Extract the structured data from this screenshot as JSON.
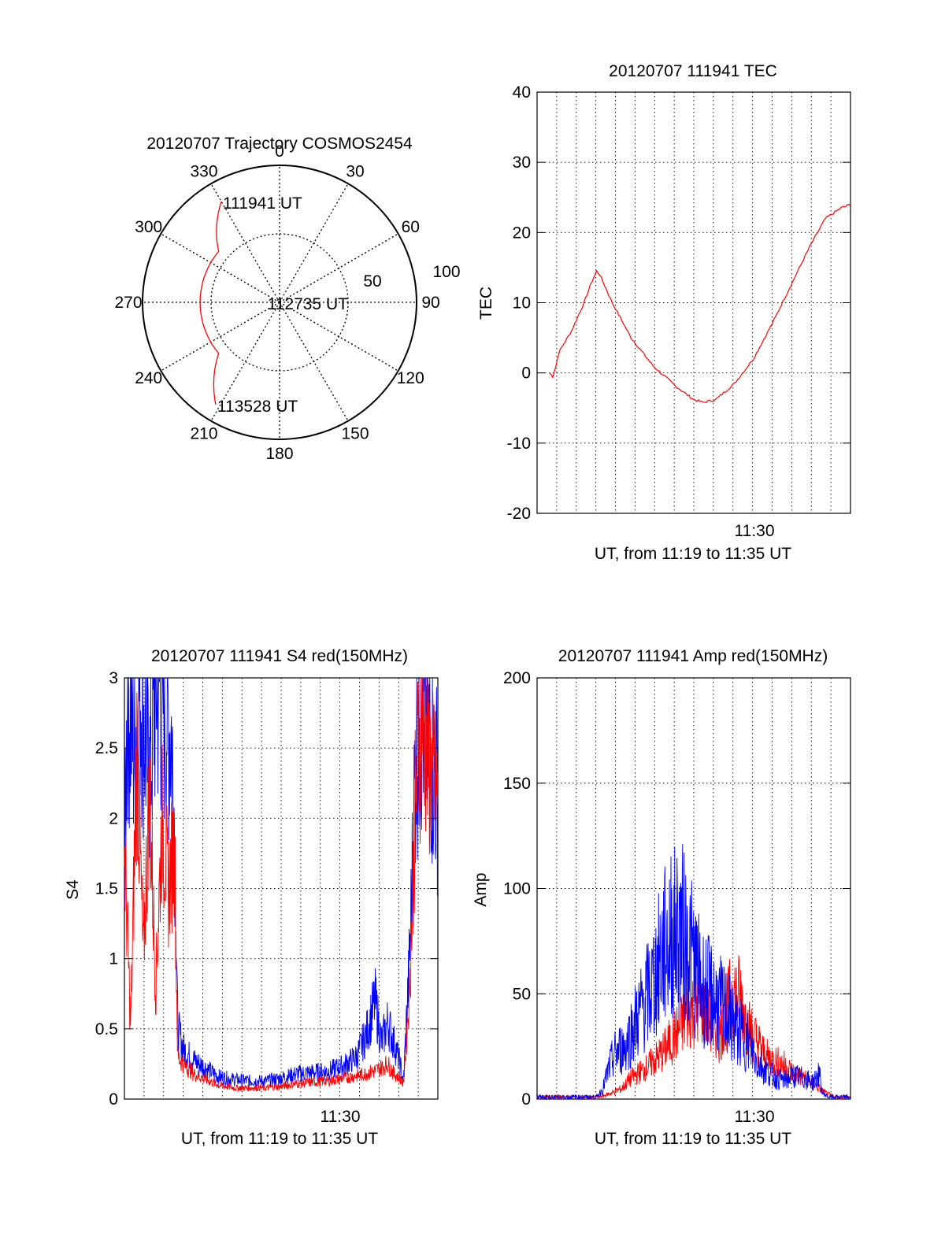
{
  "colors": {
    "red": "#ff0000",
    "blue": "#0000ff",
    "axis": "#000000",
    "grid": "#000000"
  },
  "chart_data": [
    {
      "id": "polar",
      "type": "polar",
      "title": "20120707 Trajectory COSMOS2454",
      "azimuth_labels": [
        "0",
        "30",
        "60",
        "90",
        "120",
        "150",
        "180",
        "210",
        "240",
        "270",
        "300",
        "330"
      ],
      "radial_labels": [
        "50",
        "100"
      ],
      "rlim": [
        0,
        100
      ],
      "grid": true,
      "series": [
        {
          "color": "red",
          "points": [
            [
              330,
              85
            ],
            [
              310,
              58
            ],
            [
              270,
              58
            ],
            [
              230,
              58
            ],
            [
              212,
              88
            ]
          ]
        }
      ],
      "annotations": [
        {
          "text": "111941 UT",
          "az": 330,
          "r": 85
        },
        {
          "text": "112735 UT",
          "az": 270,
          "r": 10
        },
        {
          "text": "113528 UT",
          "az": 212,
          "r": 88
        }
      ]
    },
    {
      "id": "tec",
      "type": "line",
      "title": "20120707 111941 TEC",
      "ylabel": "TEC",
      "xlabel": "UT, from 11:19 to 11:35 UT",
      "xtick_label": "11:30",
      "xlim": [
        0,
        100
      ],
      "ylim": [
        -20,
        40
      ],
      "yticks": [
        "40",
        "30",
        "20",
        "10",
        "0",
        "-10",
        "-20"
      ],
      "grid": true,
      "series": [
        {
          "color": "red",
          "points": [
            [
              4,
              0
            ],
            [
              5,
              -0.5
            ],
            [
              6,
              1
            ],
            [
              7,
              3
            ],
            [
              9,
              4.5
            ],
            [
              11,
              6
            ],
            [
              13,
              8
            ],
            [
              15,
              10
            ],
            [
              17,
              12.5
            ],
            [
              19,
              14.5
            ],
            [
              20,
              14
            ],
            [
              24,
              10
            ],
            [
              30,
              5
            ],
            [
              37,
              1
            ],
            [
              44,
              -1.8
            ],
            [
              50,
              -3.8
            ],
            [
              53,
              -4.2
            ],
            [
              57,
              -3.8
            ],
            [
              63,
              -1.5
            ],
            [
              69,
              2
            ],
            [
              75,
              7
            ],
            [
              81,
              12.5
            ],
            [
              87,
              18
            ],
            [
              92,
              22
            ],
            [
              97,
              23.5
            ],
            [
              100,
              24
            ]
          ]
        }
      ]
    },
    {
      "id": "s4",
      "type": "line",
      "title": "20120707 111941 S4 red(150MHz)",
      "ylabel": "S4",
      "xlabel": "UT, from 11:19 to 11:35 UT",
      "xtick_label": "11:30",
      "xlim": [
        0,
        100
      ],
      "ylim": [
        0,
        3
      ],
      "yticks": [
        "3",
        "2.5",
        "2",
        "1.5",
        "1",
        "0.5",
        "0"
      ],
      "grid": true,
      "series": [
        {
          "color": "blue",
          "noise": 0.35,
          "points": [
            [
              0,
              1.5
            ],
            [
              1,
              3
            ],
            [
              3,
              2.5
            ],
            [
              5,
              3
            ],
            [
              8,
              2.3
            ],
            [
              10,
              3
            ],
            [
              13,
              2.8
            ],
            [
              15,
              2.6
            ],
            [
              16,
              2
            ],
            [
              17,
              0.5
            ],
            [
              19,
              0.35
            ],
            [
              22,
              0.28
            ],
            [
              26,
              0.22
            ],
            [
              30,
              0.16
            ],
            [
              35,
              0.14
            ],
            [
              40,
              0.13
            ],
            [
              45,
              0.13
            ],
            [
              50,
              0.15
            ],
            [
              55,
              0.18
            ],
            [
              60,
              0.19
            ],
            [
              65,
              0.2
            ],
            [
              70,
              0.24
            ],
            [
              74,
              0.3
            ],
            [
              77,
              0.45
            ],
            [
              80,
              0.7
            ],
            [
              82,
              0.4
            ],
            [
              84,
              0.55
            ],
            [
              86,
              0.4
            ],
            [
              88,
              0.25
            ],
            [
              89,
              0.12
            ],
            [
              91,
              1
            ],
            [
              93,
              2.5
            ],
            [
              95,
              2.8
            ],
            [
              97,
              2.6
            ],
            [
              100,
              2.2
            ]
          ]
        },
        {
          "color": "red",
          "noise": 0.3,
          "points": [
            [
              0,
              1.8
            ],
            [
              2,
              0.5
            ],
            [
              4,
              2.5
            ],
            [
              6,
              1
            ],
            [
              8,
              2.2
            ],
            [
              10,
              0.8
            ],
            [
              12,
              2
            ],
            [
              14,
              1.5
            ],
            [
              16,
              1.8
            ],
            [
              17,
              0.3
            ],
            [
              19,
              0.25
            ],
            [
              22,
              0.18
            ],
            [
              26,
              0.14
            ],
            [
              30,
              0.1
            ],
            [
              35,
              0.08
            ],
            [
              40,
              0.08
            ],
            [
              45,
              0.08
            ],
            [
              50,
              0.09
            ],
            [
              55,
              0.11
            ],
            [
              60,
              0.12
            ],
            [
              65,
              0.13
            ],
            [
              70,
              0.15
            ],
            [
              75,
              0.17
            ],
            [
              80,
              0.2
            ],
            [
              84,
              0.25
            ],
            [
              86,
              0.18
            ],
            [
              88,
              0.15
            ],
            [
              89,
              0.1
            ],
            [
              91,
              0.8
            ],
            [
              93,
              2.2
            ],
            [
              95,
              2.8
            ],
            [
              97,
              2.4
            ],
            [
              100,
              2.1
            ]
          ]
        }
      ]
    },
    {
      "id": "amp",
      "type": "line",
      "title": "20120707 111941 Amp red(150MHz)",
      "ylabel": "Amp",
      "xlabel": "UT, from 11:19 to 11:35 UT",
      "xtick_label": "11:30",
      "xlim": [
        0,
        100
      ],
      "ylim": [
        0,
        200
      ],
      "yticks": [
        "200",
        "150",
        "100",
        "50",
        "0"
      ],
      "grid": true,
      "series": [
        {
          "color": "red",
          "noise": 0.45,
          "points": [
            [
              0,
              1
            ],
            [
              10,
              1
            ],
            [
              20,
              1
            ],
            [
              24,
              3
            ],
            [
              27,
              5
            ],
            [
              30,
              10
            ],
            [
              35,
              15
            ],
            [
              40,
              22
            ],
            [
              45,
              32
            ],
            [
              48,
              40
            ],
            [
              52,
              45
            ],
            [
              55,
              38
            ],
            [
              58,
              30
            ],
            [
              60,
              38
            ],
            [
              62,
              50
            ],
            [
              65,
              48
            ],
            [
              67,
              35
            ],
            [
              70,
              28
            ],
            [
              73,
              20
            ],
            [
              76,
              18
            ],
            [
              79,
              16
            ],
            [
              82,
              12
            ],
            [
              85,
              10
            ],
            [
              88,
              8
            ],
            [
              90,
              5
            ],
            [
              92,
              3
            ],
            [
              95,
              1
            ],
            [
              100,
              1
            ]
          ]
        },
        {
          "color": "blue",
          "noise": 0.55,
          "points": [
            [
              0,
              1
            ],
            [
              10,
              1
            ],
            [
              19,
              1
            ],
            [
              21,
              5
            ],
            [
              23,
              15
            ],
            [
              25,
              22
            ],
            [
              28,
              25
            ],
            [
              31,
              35
            ],
            [
              34,
              45
            ],
            [
              37,
              55
            ],
            [
              40,
              70
            ],
            [
              43,
              78
            ],
            [
              46,
              80
            ],
            [
              49,
              70
            ],
            [
              52,
              55
            ],
            [
              55,
              50
            ],
            [
              58,
              45
            ],
            [
              61,
              40
            ],
            [
              64,
              32
            ],
            [
              67,
              28
            ],
            [
              70,
              18
            ],
            [
              73,
              14
            ],
            [
              76,
              10
            ],
            [
              79,
              9
            ],
            [
              82,
              11
            ],
            [
              85,
              10
            ],
            [
              88,
              8
            ],
            [
              90,
              12
            ],
            [
              91,
              3
            ],
            [
              93,
              1
            ],
            [
              100,
              1
            ]
          ]
        }
      ]
    }
  ]
}
